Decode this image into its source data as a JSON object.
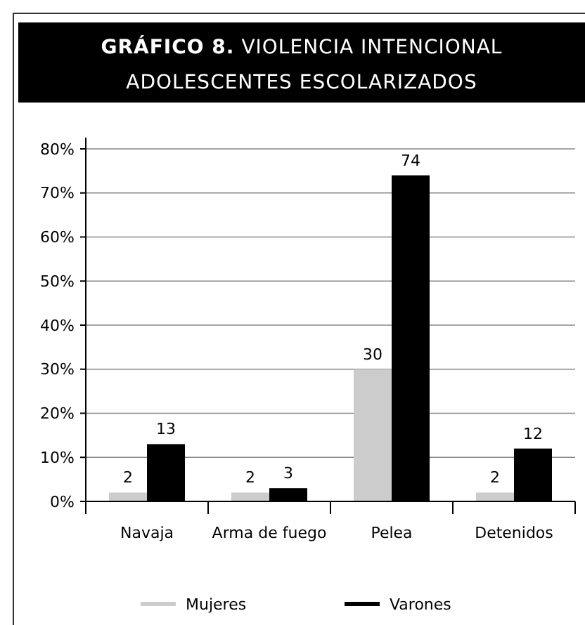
{
  "chart_data": {
    "type": "bar",
    "title": "GRÁFICO 8. VIOLENCIA INTENCIONAL ADOLESCENTES ESCOLARIZADOS",
    "categories": [
      "Navaja",
      "Arma de fuego",
      "Pelea",
      "Detenidos"
    ],
    "series": [
      {
        "name": "Mujeres",
        "color": "#cccccc",
        "values": [
          2,
          2,
          30,
          2
        ]
      },
      {
        "name": "Varones",
        "color": "#000000",
        "values": [
          13,
          3,
          74,
          12
        ]
      }
    ],
    "ylim": [
      0,
      80
    ],
    "yticks": [
      {
        "value": 0,
        "label": "0%"
      },
      {
        "value": 10,
        "label": "10%"
      },
      {
        "value": 20,
        "label": "20%"
      },
      {
        "value": 30,
        "label": "30%"
      },
      {
        "value": 40,
        "label": "40%"
      },
      {
        "value": 50,
        "label": "50%"
      },
      {
        "value": 60,
        "label": "60%"
      },
      {
        "value": 70,
        "label": "70%"
      },
      {
        "value": 80,
        "label": "80%"
      }
    ],
    "grid": "y",
    "legend": "bottom",
    "data_labels": true
  }
}
